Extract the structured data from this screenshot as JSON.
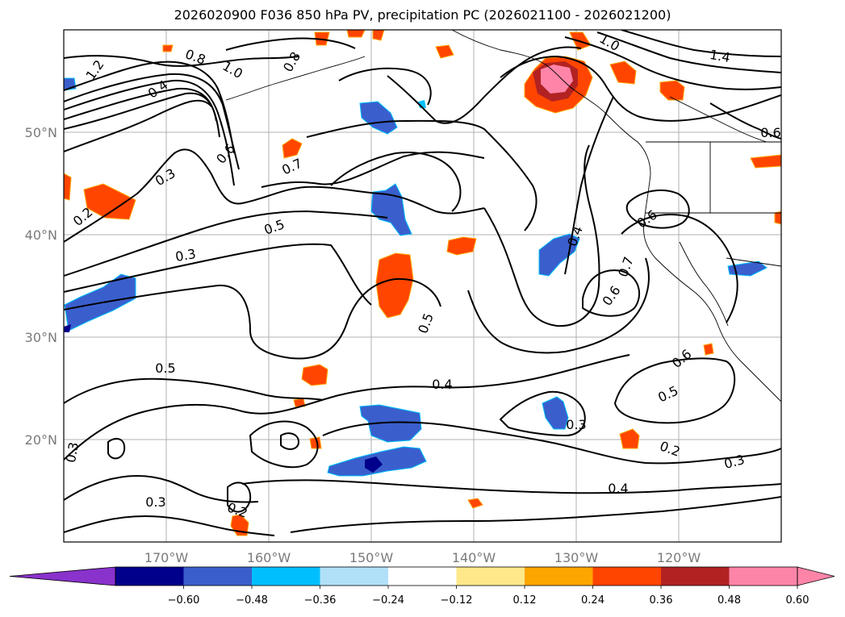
{
  "title": "2026020900 F036 850 hPa PV, precipitation PC (2026021100 - 2026021200)",
  "chart_data": {
    "type": "contour-map",
    "projection": "cylindrical",
    "lon_range": [
      -180,
      -110
    ],
    "lat_range": [
      10,
      60
    ],
    "lat_ticks": [
      "20°N",
      "30°N",
      "40°N",
      "50°N"
    ],
    "lon_ticks": [
      "170°W",
      "160°W",
      "150°W",
      "140°W",
      "130°W",
      "120°W"
    ],
    "grid": true,
    "contour_variable": "850 hPa PV",
    "contour_labels": [
      "1.2",
      "0.8",
      "1.0",
      "0.4",
      "0.6",
      "0.3",
      "0.2",
      "0.7",
      "0.5",
      "0.3",
      "0.5",
      "0.5",
      "0.4",
      "0.3",
      "0.3",
      "0.2",
      "0.4",
      "0.3",
      "0.2",
      "0.4",
      "0.3",
      "0.6",
      "0.5",
      "0.6",
      "0.7",
      "0.6",
      "0.8",
      "1.4",
      "1.0",
      "0.6"
    ],
    "colorbar": {
      "ticks": [
        "−0.60",
        "−0.48",
        "−0.36",
        "−0.24",
        "−0.12",
        "0.12",
        "0.24",
        "0.36",
        "0.48",
        "0.60"
      ],
      "colors": [
        "#8a32cc",
        "#00008b",
        "#3a5fcd",
        "#00bfff",
        "#b0e0f8",
        "#ffffff",
        "#ffe88a",
        "#ffa500",
        "#ff4500",
        "#b22222",
        "#ff85a8",
        "#ff85a8"
      ],
      "extend": "both"
    }
  }
}
